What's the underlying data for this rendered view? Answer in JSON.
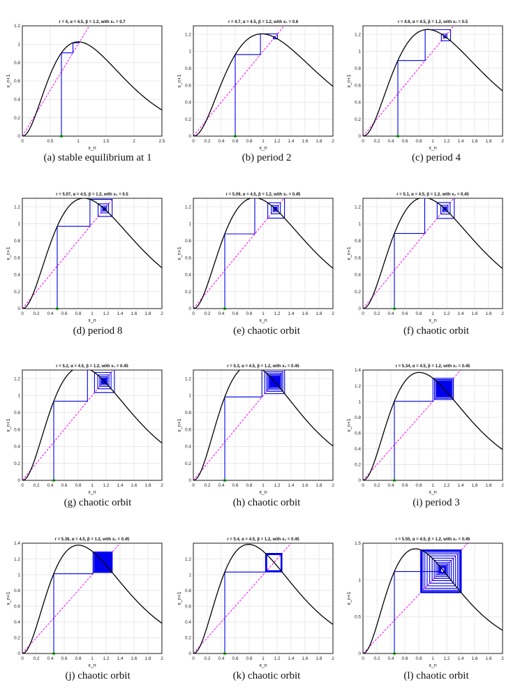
{
  "chart_data": [
    {
      "type": "line",
      "panel": "a",
      "caption": "(a) stable equilibrium at 1",
      "title": "r = 4, α = 4.5, β = 1.2, with x₀ = 0.7",
      "xlabel": "x_n",
      "ylabel": "x_n+1",
      "r": 4,
      "alpha": 4.5,
      "beta": 1.2,
      "x0": 0.7,
      "xlim": [
        0,
        2.5
      ],
      "ylim": [
        0,
        1.2
      ],
      "xticks": [
        "0",
        "0.5",
        "1",
        "1.5",
        "2",
        "2.5"
      ],
      "yticks": [
        "0",
        "0.2",
        "0.4",
        "0.6",
        "0.8",
        "1",
        "1.2"
      ]
    },
    {
      "type": "line",
      "panel": "b",
      "caption": "(b) period 2",
      "title": "r = 4.7, α = 4.5, β = 1.2, with x₀ = 0.6",
      "xlabel": "x_n",
      "ylabel": "x_n+1",
      "r": 4.7,
      "alpha": 4.5,
      "beta": 1.2,
      "x0": 0.6,
      "xlim": [
        0,
        2
      ],
      "ylim": [
        0,
        1.3
      ],
      "xticks": [
        "0",
        "0.2",
        "0.4",
        "0.6",
        "0.8",
        "1",
        "1.2",
        "1.4",
        "1.6",
        "1.8",
        "2"
      ],
      "yticks": [
        "0",
        "0.2",
        "0.4",
        "0.6",
        "0.8",
        "1",
        "1.2"
      ]
    },
    {
      "type": "line",
      "panel": "c",
      "caption": "(c) period 4",
      "title": "r = 4.9, α = 4.5, β = 1.2, with x₀ = 0.5",
      "xlabel": "x_n",
      "ylabel": "x_n+1",
      "r": 4.9,
      "alpha": 4.5,
      "beta": 1.2,
      "x0": 0.5,
      "xlim": [
        0,
        2
      ],
      "ylim": [
        0,
        1.3
      ],
      "xticks": [
        "0",
        "0.2",
        "0.4",
        "0.6",
        "0.8",
        "1",
        "1.2",
        "1.4",
        "1.6",
        "1.8",
        "2"
      ],
      "yticks": [
        "0",
        "0.2",
        "0.4",
        "0.6",
        "0.8",
        "1",
        "1.2"
      ]
    },
    {
      "type": "line",
      "panel": "d",
      "caption": "(d) period 8",
      "title": "r = 5.07, α = 4.5, β = 1.2, with x₀ = 0.5",
      "xlabel": "x_n",
      "ylabel": "x_n+1",
      "r": 5.07,
      "alpha": 4.5,
      "beta": 1.2,
      "x0": 0.5,
      "xlim": [
        0,
        2
      ],
      "ylim": [
        0,
        1.3
      ],
      "xticks": [
        "0",
        "0.2",
        "0.4",
        "0.6",
        "0.8",
        "1",
        "1.2",
        "1.4",
        "1.6",
        "1.8",
        "2"
      ],
      "yticks": [
        "0",
        "0.2",
        "0.4",
        "0.6",
        "0.8",
        "1",
        "1.2"
      ]
    },
    {
      "type": "line",
      "panel": "e",
      "caption": "(e) chaotic orbit",
      "title": "r = 5.09, α = 4.5, β = 1.2, with x₀ = 0.45",
      "xlabel": "x_n",
      "ylabel": "x_n+1",
      "r": 5.09,
      "alpha": 4.5,
      "beta": 1.2,
      "x0": 0.45,
      "xlim": [
        0,
        2
      ],
      "ylim": [
        0,
        1.3
      ],
      "xticks": [
        "0",
        "0.2",
        "0.4",
        "0.6",
        "0.8",
        "1",
        "1.2",
        "1.4",
        "1.6",
        "1.8",
        "2"
      ],
      "yticks": [
        "0",
        "0.2",
        "0.4",
        "0.6",
        "0.8",
        "1",
        "1.2"
      ]
    },
    {
      "type": "line",
      "panel": "f",
      "caption": "(f) chaotic orbit",
      "title": "r = 5.1, α = 4.5, β = 1.2, with x₀ = 0.45",
      "xlabel": "x_n",
      "ylabel": "x_n+1",
      "r": 5.1,
      "alpha": 4.5,
      "beta": 1.2,
      "x0": 0.45,
      "xlim": [
        0,
        2
      ],
      "ylim": [
        0,
        1.3
      ],
      "xticks": [
        "0",
        "0.2",
        "0.4",
        "0.6",
        "0.8",
        "1",
        "1.2",
        "1.4",
        "1.6",
        "1.8",
        "2"
      ],
      "yticks": [
        "0",
        "0.2",
        "0.4",
        "0.6",
        "0.8",
        "1",
        "1.2"
      ]
    },
    {
      "type": "line",
      "panel": "g",
      "caption": "(g) chaotic orbit",
      "title": "r = 5.2, α = 4.5, β = 1.2, with x₀ = 0.45",
      "xlabel": "x_n",
      "ylabel": "x_n+1",
      "r": 5.2,
      "alpha": 4.5,
      "beta": 1.2,
      "x0": 0.45,
      "xlim": [
        0,
        2
      ],
      "ylim": [
        0,
        1.3
      ],
      "xticks": [
        "0",
        "0.2",
        "0.4",
        "0.6",
        "0.8",
        "1",
        "1.2",
        "1.4",
        "1.6",
        "1.8",
        "2"
      ],
      "yticks": [
        "0",
        "0.2",
        "0.4",
        "0.6",
        "0.8",
        "1",
        "1.2"
      ]
    },
    {
      "type": "line",
      "panel": "h",
      "caption": "(h) chaotic orbit",
      "title": "r = 5.3, α = 4.5, β = 1.2, with x₀ = 0.45",
      "xlabel": "x_n",
      "ylabel": "x_n+1",
      "r": 5.3,
      "alpha": 4.5,
      "beta": 1.2,
      "x0": 0.45,
      "xlim": [
        0,
        2
      ],
      "ylim": [
        0,
        1.3
      ],
      "xticks": [
        "0",
        "0.2",
        "0.4",
        "0.6",
        "0.8",
        "1",
        "1.2",
        "1.4",
        "1.6",
        "1.8",
        "2"
      ],
      "yticks": [
        "0",
        "0.2",
        "0.4",
        "0.6",
        "0.8",
        "1",
        "1.2"
      ]
    },
    {
      "type": "line",
      "panel": "i",
      "caption": "(i) period 3",
      "title": "r = 5.34, α = 4.5, β = 1.2, with x₀ = 0.45",
      "xlabel": "x_n",
      "ylabel": "x_n+1",
      "r": 5.34,
      "alpha": 4.5,
      "beta": 1.2,
      "x0": 0.45,
      "xlim": [
        0,
        2
      ],
      "ylim": [
        0,
        1.4
      ],
      "xticks": [
        "0",
        "0.2",
        "0.4",
        "0.6",
        "0.8",
        "1",
        "1.2",
        "1.4",
        "1.6",
        "1.8",
        "2"
      ],
      "yticks": [
        "0",
        "0.2",
        "0.4",
        "0.6",
        "0.8",
        "1",
        "1.2",
        "1.4"
      ]
    },
    {
      "type": "line",
      "panel": "j",
      "caption": "(j) chaotic orbit",
      "title": "r = 5.36, α = 4.5, β = 1.2, with x₀ = 0.45",
      "xlabel": "x_n",
      "ylabel": "x_n+1",
      "r": 5.36,
      "alpha": 4.5,
      "beta": 1.2,
      "x0": 0.45,
      "xlim": [
        0,
        2
      ],
      "ylim": [
        0,
        1.4
      ],
      "xticks": [
        "0",
        "0.2",
        "0.4",
        "0.6",
        "0.8",
        "1",
        "1.2",
        "1.4",
        "1.6",
        "1.8",
        "2"
      ],
      "yticks": [
        "0",
        "0.2",
        "0.4",
        "0.6",
        "0.8",
        "1",
        "1.2",
        "1.4"
      ]
    },
    {
      "type": "line",
      "panel": "k",
      "caption": "(k) chaotic orbit",
      "title": "r = 5.4, α = 4.5, β = 1.2, with x₀ = 0.45",
      "xlabel": "x_n",
      "ylabel": "x_n+1",
      "r": 5.4,
      "alpha": 4.5,
      "beta": 1.2,
      "x0": 0.45,
      "xlim": [
        0,
        2
      ],
      "ylim": [
        0,
        1.4
      ],
      "xticks": [
        "0",
        "0.2",
        "0.4",
        "0.6",
        "0.8",
        "1",
        "1.2",
        "1.4",
        "1.6",
        "1.8",
        "2"
      ],
      "yticks": [
        "0",
        "0.2",
        "0.4",
        "0.6",
        "0.8",
        "1",
        "1.2"
      ]
    },
    {
      "type": "line",
      "panel": "l",
      "caption": "(l) chaotic orbit",
      "title": "r = 5.55, α = 4.5, β = 1.2, with x₀ = 0.45",
      "xlabel": "x_n",
      "ylabel": "x_n+1",
      "r": 5.55,
      "alpha": 4.5,
      "beta": 1.2,
      "x0": 0.45,
      "xlim": [
        0,
        2
      ],
      "ylim": [
        0,
        1.5
      ],
      "xticks": [
        "0",
        "0.2",
        "0.4",
        "0.6",
        "0.8",
        "1",
        "1.2",
        "1.4",
        "1.6",
        "1.8",
        "2"
      ],
      "yticks": [
        "0",
        "0.5",
        "1",
        "1.5"
      ]
    }
  ],
  "colors": {
    "curve": "#000000",
    "cobweb": "#0000ee",
    "diagonal": "#ff00ff",
    "start": "#22cc22",
    "grid": "#e2e2e2"
  }
}
